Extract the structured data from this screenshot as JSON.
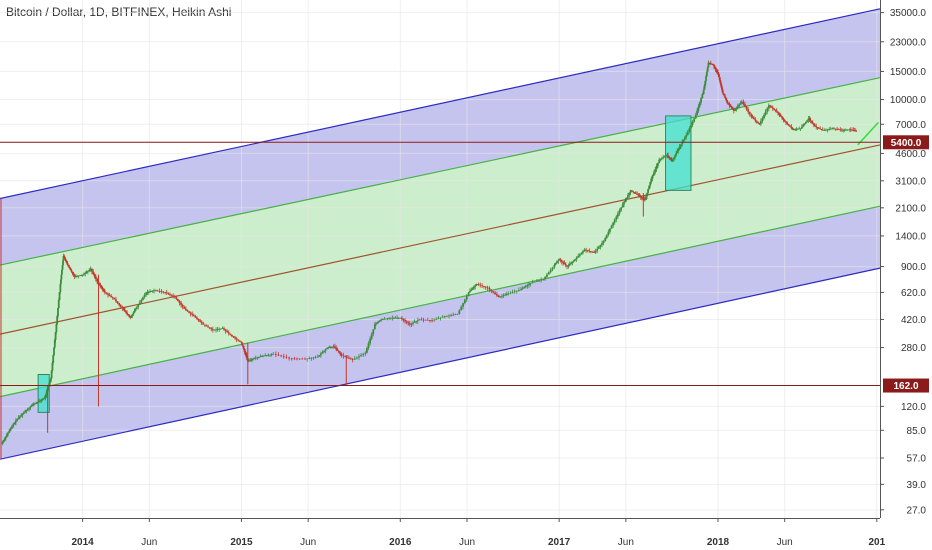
{
  "header": {
    "title": "Bitcoin / Dollar, 1D, BITFINEX, Heikin Ashi"
  },
  "chart_data": {
    "type": "candlestick",
    "title": "Bitcoin / Dollar, 1D, BITFINEX, Heikin Ashi",
    "y_scale": "log",
    "ylim": [
      24,
      42000
    ],
    "y_ticks": [
      27,
      39,
      57,
      85,
      120,
      162,
      280,
      420,
      620,
      900,
      1400,
      2100,
      3100,
      4600,
      5400,
      7000,
      10000,
      15000,
      23000,
      35000
    ],
    "y_tick_labels": [
      "27.0",
      "39.0",
      "57.0",
      "85.0",
      "120.0",
      "162.0",
      "280.0",
      "420.0",
      "620.0",
      "900.0",
      "1400.0",
      "2100.0",
      "3100.0",
      "4600.0",
      "5400.0",
      "7000.0",
      "10000.0",
      "15000.0",
      "23000.0",
      "35000.0"
    ],
    "x_ticks": [
      {
        "t": 2014.0,
        "label": "2014",
        "bold": true
      },
      {
        "t": 2014.42,
        "label": "Jun",
        "bold": false
      },
      {
        "t": 2015.0,
        "label": "2015",
        "bold": true
      },
      {
        "t": 2015.42,
        "label": "Jun",
        "bold": false
      },
      {
        "t": 2016.0,
        "label": "2016",
        "bold": true
      },
      {
        "t": 2016.42,
        "label": "Jun",
        "bold": false
      },
      {
        "t": 2017.0,
        "label": "2017",
        "bold": true
      },
      {
        "t": 2017.42,
        "label": "Jun",
        "bold": false
      },
      {
        "t": 2018.0,
        "label": "2018",
        "bold": true
      },
      {
        "t": 2018.42,
        "label": "Jun",
        "bold": false
      },
      {
        "t": 2019.0,
        "label": "201",
        "bold": true
      }
    ],
    "xlim": [
      2013.48,
      2019.02
    ],
    "price_path": [
      [
        2013.49,
        70
      ],
      [
        2013.53,
        82
      ],
      [
        2013.58,
        98
      ],
      [
        2013.63,
        110
      ],
      [
        2013.68,
        122
      ],
      [
        2013.72,
        128
      ],
      [
        2013.76,
        135
      ],
      [
        2013.8,
        180
      ],
      [
        2013.83,
        350
      ],
      [
        2013.86,
        700
      ],
      [
        2013.88,
        1050
      ],
      [
        2013.91,
        900
      ],
      [
        2013.95,
        780
      ],
      [
        2014.0,
        800
      ],
      [
        2014.05,
        870
      ],
      [
        2014.1,
        700
      ],
      [
        2014.14,
        620
      ],
      [
        2014.2,
        560
      ],
      [
        2014.26,
        480
      ],
      [
        2014.3,
        430
      ],
      [
        2014.34,
        500
      ],
      [
        2014.4,
        620
      ],
      [
        2014.45,
        640
      ],
      [
        2014.52,
        620
      ],
      [
        2014.58,
        580
      ],
      [
        2014.64,
        490
      ],
      [
        2014.7,
        440
      ],
      [
        2014.76,
        390
      ],
      [
        2014.82,
        360
      ],
      [
        2014.88,
        370
      ],
      [
        2014.94,
        330
      ],
      [
        2015.0,
        300
      ],
      [
        2015.04,
        230
      ],
      [
        2015.08,
        240
      ],
      [
        2015.14,
        250
      ],
      [
        2015.2,
        255
      ],
      [
        2015.3,
        240
      ],
      [
        2015.4,
        238
      ],
      [
        2015.48,
        245
      ],
      [
        2015.54,
        280
      ],
      [
        2015.58,
        285
      ],
      [
        2015.63,
        250
      ],
      [
        2015.7,
        235
      ],
      [
        2015.78,
        260
      ],
      [
        2015.84,
        390
      ],
      [
        2015.88,
        420
      ],
      [
        2015.94,
        430
      ],
      [
        2016.0,
        430
      ],
      [
        2016.06,
        390
      ],
      [
        2016.12,
        420
      ],
      [
        2016.2,
        415
      ],
      [
        2016.28,
        440
      ],
      [
        2016.36,
        455
      ],
      [
        2016.43,
        620
      ],
      [
        2016.48,
        700
      ],
      [
        2016.55,
        660
      ],
      [
        2016.62,
        580
      ],
      [
        2016.68,
        610
      ],
      [
        2016.76,
        650
      ],
      [
        2016.82,
        710
      ],
      [
        2016.9,
        750
      ],
      [
        2016.97,
        920
      ],
      [
        2017.0,
        1000
      ],
      [
        2017.05,
        900
      ],
      [
        2017.1,
        1000
      ],
      [
        2017.16,
        1150
      ],
      [
        2017.22,
        1100
      ],
      [
        2017.28,
        1300
      ],
      [
        2017.34,
        1700
      ],
      [
        2017.4,
        2200
      ],
      [
        2017.45,
        2700
      ],
      [
        2017.5,
        2500
      ],
      [
        2017.54,
        2350
      ],
      [
        2017.58,
        3200
      ],
      [
        2017.63,
        4200
      ],
      [
        2017.68,
        4500
      ],
      [
        2017.71,
        4100
      ],
      [
        2017.75,
        4900
      ],
      [
        2017.8,
        6000
      ],
      [
        2017.86,
        8000
      ],
      [
        2017.91,
        11500
      ],
      [
        2017.94,
        17000
      ],
      [
        2017.97,
        16500
      ],
      [
        2018.0,
        14500
      ],
      [
        2018.03,
        11000
      ],
      [
        2018.06,
        9500
      ],
      [
        2018.1,
        8500
      ],
      [
        2018.15,
        9700
      ],
      [
        2018.21,
        7800
      ],
      [
        2018.26,
        7000
      ],
      [
        2018.32,
        9200
      ],
      [
        2018.37,
        8400
      ],
      [
        2018.42,
        7300
      ],
      [
        2018.47,
        6500
      ],
      [
        2018.52,
        6600
      ],
      [
        2018.57,
        7600
      ],
      [
        2018.61,
        6800
      ],
      [
        2018.66,
        6400
      ],
      [
        2018.72,
        6600
      ],
      [
        2018.78,
        6450
      ],
      [
        2018.83,
        6500
      ],
      [
        2018.87,
        6350
      ]
    ],
    "channel": {
      "t0": 2013.48,
      "t1": 2019.02,
      "upper_outer": [
        2400,
        37000
      ],
      "upper_inner": [
        920,
        13700
      ],
      "middle": [
        340,
        5200
      ],
      "lower_inner": [
        138,
        2150
      ],
      "lower_outer": [
        56,
        880
      ]
    },
    "horizontal_levels": [
      {
        "value": 5400,
        "label": "5400.0"
      },
      {
        "value": 162,
        "label": "162.0"
      }
    ],
    "highlight_boxes": [
      {
        "t0": 2013.72,
        "t1": 2013.79,
        "v0": 110,
        "v1": 190
      },
      {
        "t0": 2017.67,
        "t1": 2017.83,
        "v0": 2700,
        "v1": 7900
      }
    ],
    "projection_segment": [
      [
        2018.88,
        5200
      ],
      [
        2019.01,
        7200
      ]
    ],
    "colors": {
      "outer_band": "#c4c4ef",
      "inner_band": "#cdeecd",
      "channel_outer_line": "#2b2bc0",
      "channel_inner_line": "#46b146",
      "channel_middle_line": "#a0522d",
      "level_line": "#8b1a1a",
      "highlight": "#40e0d0",
      "projection": "#33dd33",
      "up_candle": "#3c8c3c",
      "down_candle": "#c0392b"
    }
  }
}
